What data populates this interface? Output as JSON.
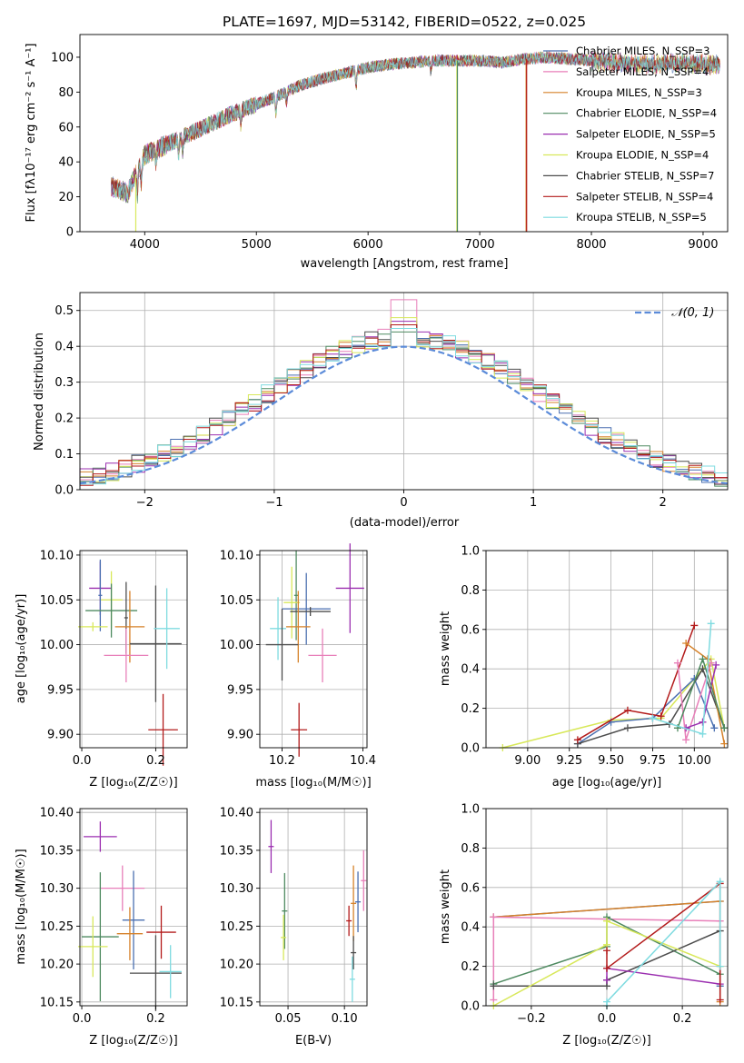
{
  "figure": {
    "spectrum": {
      "title": "PLATE=1697, MJD=53142, FIBERID=0522, z=0.025",
      "xlabel": "wavelength [Angstrom, rest frame]",
      "ylabel": "Flux [fλ10⁻¹⁷ erg cm⁻² s⁻¹ A⁻¹]",
      "xticks": [
        "4000",
        "5000",
        "6000",
        "7000",
        "8000",
        "9000"
      ],
      "yticks": [
        "0",
        "20",
        "40",
        "60",
        "80",
        "100"
      ]
    },
    "residuals": {
      "xlabel": "(data-model)/error",
      "ylabel": "Normed distribution",
      "legend_label": "𝒩(0, 1)",
      "xticks": [
        "−2",
        "−1",
        "0",
        "1",
        "2"
      ],
      "yticks": [
        "0.0",
        "0.1",
        "0.2",
        "0.3",
        "0.4",
        "0.5"
      ]
    },
    "z_age": {
      "xlabel": "Z [log₁₀(Z/Z☉)]",
      "ylabel": "age  [log₁₀(age/yr)]",
      "xticks": [
        "0.0",
        "0.2"
      ],
      "yticks": [
        "9.90",
        "9.95",
        "10.00",
        "10.05",
        "10.10"
      ]
    },
    "mass_age": {
      "xlabel": "mass [log₁₀(M/M☉)]",
      "xticks": [
        "10.2",
        "10.4"
      ],
      "yticks": [
        "9.90",
        "9.95",
        "10.00",
        "10.05",
        "10.10"
      ]
    },
    "age_weight": {
      "xlabel": "age  [log₁₀(age/yr)]",
      "ylabel": "mass weight",
      "xticks": [
        "9.00",
        "9.25",
        "9.50",
        "9.75",
        "10.00"
      ],
      "yticks": [
        "0.0",
        "0.2",
        "0.4",
        "0.6",
        "0.8",
        "1.0"
      ]
    },
    "z_mass": {
      "xlabel": "Z [log₁₀(Z/Z☉)]",
      "ylabel": "mass [log₁₀(M/M☉)]",
      "xticks": [
        "0.0",
        "0.2"
      ],
      "yticks": [
        "10.15",
        "10.20",
        "10.25",
        "10.30",
        "10.35",
        "10.40"
      ]
    },
    "ebv_mass": {
      "xlabel": "E(B-V)",
      "xticks": [
        "0.05",
        "0.10"
      ],
      "yticks": [
        "10.15",
        "10.20",
        "10.25",
        "10.30",
        "10.35",
        "10.40"
      ]
    },
    "z_weight": {
      "xlabel": "Z [log₁₀(Z/Z☉)]",
      "ylabel": "mass weight",
      "xticks": [
        "−0.2",
        "0.0",
        "0.2"
      ],
      "yticks": [
        "0.0",
        "0.2",
        "0.4",
        "0.6",
        "0.8",
        "1.0"
      ]
    }
  },
  "chart_data": [
    {
      "type": "line",
      "title": "PLATE=1697, MJD=53142, FIBERID=0522, z=0.025",
      "xlabel": "wavelength [Angstrom, rest frame]",
      "ylabel": "Flux [fλ10⁻¹⁷ erg cm⁻² s⁻¹ A⁻¹]",
      "xlim": [
        3420,
        9220
      ],
      "ylim": [
        0,
        113
      ],
      "legend_position": "top-right",
      "continuum": {
        "x": [
          3700,
          3850,
          3900,
          4000,
          4200,
          4400,
          4600,
          4800,
          5000,
          5200,
          5400,
          5600,
          5800,
          6000,
          6200,
          6400,
          6600,
          6800,
          7000,
          7200,
          7400,
          7600,
          7800,
          8000,
          8200,
          8400,
          8600,
          8800,
          9000,
          9150
        ],
        "y": [
          26,
          22,
          30,
          44,
          50,
          56,
          62,
          68,
          73,
          78,
          84,
          88,
          91,
          94,
          96,
          97,
          98,
          98,
          98,
          97,
          99,
          100,
          99,
          98,
          97,
          96,
          96,
          97,
          96,
          95
        ]
      },
      "series": [
        {
          "name": "Chabrier MILES, N_SSP=3",
          "color": "#4a6fb0"
        },
        {
          "name": "Salpeter MILES, N_SSP=4",
          "color": "#e87fb9"
        },
        {
          "name": "Kroupa MILES, N_SSP=3",
          "color": "#d6822a"
        },
        {
          "name": "Chabrier ELODIE, N_SSP=4",
          "color": "#4e8a60"
        },
        {
          "name": "Salpeter ELODIE, N_SSP=5",
          "color": "#9b2fb0"
        },
        {
          "name": "Kroupa ELODIE, N_SSP=4",
          "color": "#d8e85a"
        },
        {
          "name": "Chabrier STELIB, N_SSP=7",
          "color": "#4d4d4d"
        },
        {
          "name": "Salpeter STELIB, N_SSP=4",
          "color": "#b31b1b"
        },
        {
          "name": "Kroupa STELIB, N_SSP=5",
          "color": "#7fdbe0"
        }
      ]
    },
    {
      "type": "line",
      "xlabel": "(data-model)/error",
      "ylabel": "Normed distribution",
      "xlim": [
        -2.5,
        2.5
      ],
      "ylim": [
        0,
        0.55
      ],
      "legend_position": "top-right",
      "series": [
        {
          "name": "𝒩(0, 1)",
          "color": "#5b8bd9",
          "style": "dashed",
          "function": "normal",
          "mean": 0,
          "sigma": 1
        }
      ],
      "histograms": {
        "bin_edges_start": -2.5,
        "bin_width": 0.1,
        "colors": [
          "#4a6fb0",
          "#e87fb9",
          "#d6822a",
          "#4e8a60",
          "#9b2fb0",
          "#d8e85a",
          "#4d4d4d",
          "#b31b1b",
          "#7fdbe0"
        ],
        "peak_values": [
          0.46,
          0.53,
          0.45,
          0.44,
          0.47,
          0.48,
          0.46,
          0.46,
          0.45
        ]
      }
    },
    {
      "type": "scatter",
      "xlabel": "Z [log₁₀(Z/Z☉)]",
      "ylabel": "age  [log₁₀(age/yr)]",
      "xlim": [
        -0.005,
        0.285
      ],
      "ylim": [
        9.885,
        10.105
      ],
      "points": [
        {
          "color": "#9b2fb0",
          "x": 0.05,
          "y": 10.063,
          "xerr": 0.03,
          "yerr": 0.03
        },
        {
          "color": "#d8e85a",
          "x": 0.08,
          "y": 10.05,
          "xerr": 0.03,
          "yerr": 0.032
        },
        {
          "color": "#4a6fb0",
          "x": 0.05,
          "y": 10.055,
          "xerr": 0.005,
          "yerr": 0.04
        },
        {
          "color": "#4e8a60",
          "x": 0.08,
          "y": 10.038,
          "xerr": 0.07,
          "yerr": 0.03
        },
        {
          "color": "#4d4d4d",
          "x": 0.12,
          "y": 10.03,
          "xerr": 0.005,
          "yerr": 0.04
        },
        {
          "color": "#d8e85a",
          "x": 0.03,
          "y": 10.02,
          "xerr": 0.04,
          "yerr": 0.005
        },
        {
          "color": "#d6822a",
          "x": 0.13,
          "y": 10.02,
          "xerr": 0.04,
          "yerr": 0.04
        },
        {
          "color": "#e87fb9",
          "x": 0.12,
          "y": 9.988,
          "xerr": 0.06,
          "yerr": 0.03
        },
        {
          "color": "#4d4d4d",
          "x": 0.2,
          "y": 10.001,
          "xerr": 0.07,
          "yerr": 0.065
        },
        {
          "color": "#7fdbe0",
          "x": 0.23,
          "y": 10.018,
          "xerr": 0.035,
          "yerr": 0.045
        },
        {
          "color": "#b31b1b",
          "x": 0.22,
          "y": 9.905,
          "xerr": 0.04,
          "yerr": 0.04
        }
      ]
    },
    {
      "type": "scatter",
      "xlabel": "mass [log₁₀(M/M☉)]",
      "xlim": [
        10.145,
        10.41
      ],
      "ylim": [
        9.885,
        10.105
      ],
      "points": [
        {
          "color": "#9b2fb0",
          "x": 10.368,
          "y": 10.063,
          "xerr": 0.035,
          "yerr": 0.05
        },
        {
          "color": "#4e8a60",
          "x": 10.235,
          "y": 10.055,
          "xerr": 0.005,
          "yerr": 0.05
        },
        {
          "color": "#d8e85a",
          "x": 10.224,
          "y": 10.047,
          "xerr": 0.02,
          "yerr": 0.04
        },
        {
          "color": "#4a6fb0",
          "x": 10.26,
          "y": 10.04,
          "xerr": 0.06,
          "yerr": 0.04
        },
        {
          "color": "#4d4d4d",
          "x": 10.27,
          "y": 10.037,
          "xerr": 0.05,
          "yerr": 0.005
        },
        {
          "color": "#d6822a",
          "x": 10.24,
          "y": 10.02,
          "xerr": 0.03,
          "yerr": 0.04
        },
        {
          "color": "#7fdbe0",
          "x": 10.19,
          "y": 10.018,
          "xerr": 0.02,
          "yerr": 0.035
        },
        {
          "color": "#4d4d4d",
          "x": 10.2,
          "y": 10.0,
          "xerr": 0.04,
          "yerr": 0.04
        },
        {
          "color": "#e87fb9",
          "x": 10.3,
          "y": 9.988,
          "xerr": 0.035,
          "yerr": 0.03
        },
        {
          "color": "#b31b1b",
          "x": 10.242,
          "y": 9.905,
          "xerr": 0.02,
          "yerr": 0.03
        }
      ]
    },
    {
      "type": "line",
      "xlabel": "age  [log₁₀(age/yr)]",
      "ylabel": "mass weight",
      "xlim": [
        8.75,
        10.2
      ],
      "ylim": [
        0,
        1.0
      ],
      "series": [
        {
          "color": "#d8e85a",
          "x": [
            8.85,
            9.5,
            9.8,
            10.1,
            10.18
          ],
          "y": [
            0.0,
            0.14,
            0.15,
            0.45,
            0.1
          ]
        },
        {
          "color": "#4a6fb0",
          "x": [
            9.3,
            9.5,
            9.75,
            10.0,
            10.12
          ],
          "y": [
            0.02,
            0.13,
            0.15,
            0.35,
            0.1
          ]
        },
        {
          "color": "#4d4d4d",
          "x": [
            9.3,
            9.6,
            9.85,
            10.05,
            10.18
          ],
          "y": [
            0.02,
            0.1,
            0.12,
            0.4,
            0.1
          ]
        },
        {
          "color": "#b31b1b",
          "x": [
            9.3,
            9.6,
            9.8,
            10.0
          ],
          "y": [
            0.04,
            0.19,
            0.16,
            0.62
          ]
        },
        {
          "color": "#d6822a",
          "x": [
            9.95,
            10.08,
            10.18
          ],
          "y": [
            0.53,
            0.45,
            0.02
          ]
        },
        {
          "color": "#e87fb9",
          "x": [
            9.9,
            9.95,
            10.1
          ],
          "y": [
            0.43,
            0.04,
            0.43
          ]
        },
        {
          "color": "#9b2fb0",
          "x": [
            9.95,
            10.05,
            10.13
          ],
          "y": [
            0.1,
            0.13,
            0.42
          ]
        },
        {
          "color": "#4e8a60",
          "x": [
            9.9,
            10.05,
            10.18
          ],
          "y": [
            0.1,
            0.45,
            0.1
          ]
        },
        {
          "color": "#7fdbe0",
          "x": [
            9.75,
            10.05,
            10.1
          ],
          "y": [
            0.15,
            0.07,
            0.63
          ]
        }
      ]
    },
    {
      "type": "scatter",
      "xlabel": "Z [log₁₀(Z/Z☉)]",
      "ylabel": "mass [log₁₀(M/M☉)]",
      "xlim": [
        -0.005,
        0.285
      ],
      "ylim": [
        10.145,
        10.405
      ],
      "points": [
        {
          "color": "#9b2fb0",
          "x": 0.05,
          "y": 10.368,
          "xerr": 0.045,
          "yerr": 0.02
        },
        {
          "color": "#e87fb9",
          "x": 0.11,
          "y": 10.3,
          "xerr": 0.06,
          "yerr": 0.03
        },
        {
          "color": "#4a6fb0",
          "x": 0.14,
          "y": 10.258,
          "xerr": 0.03,
          "yerr": 0.065
        },
        {
          "color": "#4e8a60",
          "x": 0.05,
          "y": 10.236,
          "xerr": 0.05,
          "yerr": 0.085
        },
        {
          "color": "#d6822a",
          "x": 0.13,
          "y": 10.24,
          "xerr": 0.035,
          "yerr": 0.035
        },
        {
          "color": "#b31b1b",
          "x": 0.215,
          "y": 10.242,
          "xerr": 0.04,
          "yerr": 0.035
        },
        {
          "color": "#d8e85a",
          "x": 0.03,
          "y": 10.223,
          "xerr": 0.04,
          "yerr": 0.04
        },
        {
          "color": "#4d4d4d",
          "x": 0.2,
          "y": 10.188,
          "xerr": 0.07,
          "yerr": 0.05
        },
        {
          "color": "#7fdbe0",
          "x": 0.24,
          "y": 10.19,
          "xerr": 0.03,
          "yerr": 0.035
        }
      ]
    },
    {
      "type": "scatter",
      "xlabel": "E(B-V)",
      "xlim": [
        0.025,
        0.12
      ],
      "ylim": [
        10.145,
        10.405
      ],
      "points": [
        {
          "color": "#9b2fb0",
          "x": 0.035,
          "y": 10.355,
          "yerr": 0.035
        },
        {
          "color": "#e87fb9",
          "x": 0.117,
          "y": 10.31,
          "yerr": 0.04
        },
        {
          "color": "#4a6fb0",
          "x": 0.112,
          "y": 10.282,
          "yerr": 0.04
        },
        {
          "color": "#4e8a60",
          "x": 0.047,
          "y": 10.27,
          "yerr": 0.05
        },
        {
          "color": "#d8e85a",
          "x": 0.046,
          "y": 10.235,
          "yerr": 0.03
        },
        {
          "color": "#d6822a",
          "x": 0.108,
          "y": 10.28,
          "yerr": 0.05
        },
        {
          "color": "#b31b1b",
          "x": 0.104,
          "y": 10.257,
          "yerr": 0.02
        },
        {
          "color": "#4d4d4d",
          "x": 0.108,
          "y": 10.215,
          "yerr": 0.022
        },
        {
          "color": "#7fdbe0",
          "x": 0.107,
          "y": 10.18,
          "yerr": 0.03
        }
      ]
    },
    {
      "type": "line",
      "xlabel": "Z [log₁₀(Z/Z☉)]",
      "ylabel": "mass weight",
      "xlim": [
        -0.32,
        0.32
      ],
      "ylim": [
        0,
        1.0
      ],
      "series": [
        {
          "color": "#4a6fb0",
          "x": [
            -0.3,
            0.3,
            0.3
          ],
          "y": [
            0.45,
            0.53,
            0.1
          ]
        },
        {
          "color": "#d6822a",
          "x": [
            -0.3,
            0.3,
            0.3
          ],
          "y": [
            0.45,
            0.53,
            0.02
          ]
        },
        {
          "color": "#e87fb9",
          "x": [
            -0.3,
            -0.3,
            0.3
          ],
          "y": [
            0.03,
            0.45,
            0.43
          ]
        },
        {
          "color": "#4e8a60",
          "x": [
            -0.3,
            0.0,
            0.0,
            0.3
          ],
          "y": [
            0.11,
            0.3,
            0.45,
            0.16
          ]
        },
        {
          "color": "#4d4d4d",
          "x": [
            -0.3,
            0.0,
            0.0,
            0.3
          ],
          "y": [
            0.1,
            0.1,
            0.13,
            0.38
          ]
        },
        {
          "color": "#d8e85a",
          "x": [
            -0.3,
            0.0,
            0.0,
            0.3
          ],
          "y": [
            0.0,
            0.31,
            0.43,
            0.2
          ]
        },
        {
          "color": "#9b2fb0",
          "x": [
            0.0,
            0.0,
            0.3
          ],
          "y": [
            0.13,
            0.19,
            0.11
          ]
        },
        {
          "color": "#b31b1b",
          "x": [
            0.0,
            0.0,
            0.3,
            0.3
          ],
          "y": [
            0.28,
            0.19,
            0.62,
            0.03
          ]
        },
        {
          "color": "#7fdbe0",
          "x": [
            0.0,
            0.0,
            0.3,
            0.3
          ],
          "y": [
            0.0,
            0.02,
            0.63,
            0.2
          ]
        }
      ]
    }
  ]
}
